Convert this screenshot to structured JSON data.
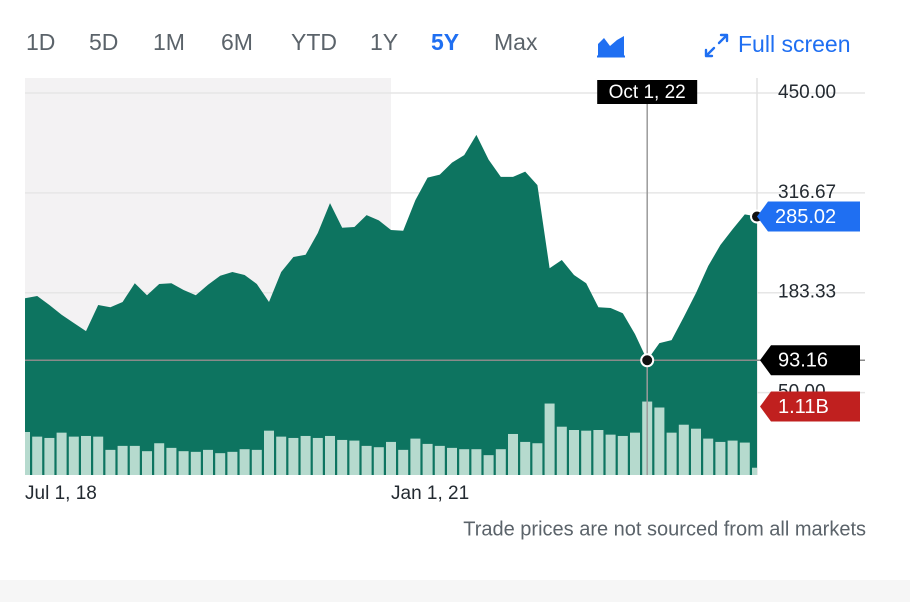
{
  "ui": {
    "ranges": [
      "1D",
      "5D",
      "1M",
      "6M",
      "YTD",
      "1Y",
      "5Y",
      "Max"
    ],
    "active_range": "5Y",
    "fullscreen": "Full screen",
    "note": "Trade prices are not sourced from all markets"
  },
  "chart_data": {
    "type": "area",
    "categories": [
      "Jul 1, 18",
      null,
      null,
      null,
      null,
      null,
      null,
      null,
      null,
      null,
      null,
      null,
      null,
      null,
      null,
      null,
      null,
      null,
      null,
      null,
      null,
      null,
      null,
      null,
      null,
      null,
      null,
      null,
      null,
      null,
      "Jan 1, 21",
      null,
      null,
      null,
      null,
      null,
      null,
      null,
      null,
      null,
      null,
      null,
      null,
      null,
      null,
      null,
      null,
      null,
      null,
      null,
      null,
      "Oct 1, 22",
      null,
      null,
      null,
      null,
      null,
      null,
      null,
      null,
      null
    ],
    "series": [
      {
        "name": "Price",
        "type": "area",
        "color": "#0d7460",
        "values": [
          176,
          179,
          167,
          154,
          143,
          132,
          167,
          164,
          171,
          196,
          180,
          195,
          196,
          187,
          180,
          194,
          206,
          211,
          207,
          195,
          171,
          211,
          231,
          234,
          263,
          303,
          270,
          271,
          287,
          280,
          267,
          266,
          307,
          337,
          341,
          357,
          367,
          394,
          361,
          338,
          338,
          345,
          327,
          216,
          227,
          207,
          196,
          164,
          163,
          156,
          128,
          93.16,
          116,
          120,
          151,
          183,
          219,
          247,
          268,
          288,
          285.02
        ]
      },
      {
        "name": "Volume",
        "type": "bar",
        "axis": "y2",
        "color": "#c4e3d8",
        "values": [
          0.65,
          0.58,
          0.56,
          0.64,
          0.58,
          0.59,
          0.58,
          0.38,
          0.44,
          0.44,
          0.36,
          0.48,
          0.41,
          0.36,
          0.35,
          0.38,
          0.33,
          0.35,
          0.39,
          0.38,
          0.67,
          0.58,
          0.56,
          0.59,
          0.56,
          0.59,
          0.53,
          0.52,
          0.44,
          0.42,
          0.5,
          0.38,
          0.55,
          0.47,
          0.44,
          0.41,
          0.39,
          0.39,
          0.3,
          0.39,
          0.62,
          0.5,
          0.48,
          1.08,
          0.73,
          0.68,
          0.67,
          0.68,
          0.61,
          0.59,
          0.64,
          1.11,
          1.02,
          0.64,
          0.76,
          0.7,
          0.55,
          0.5,
          0.52,
          0.49,
          0.11
        ],
        "value_labels": [
          null,
          null,
          null,
          null,
          null,
          null,
          null,
          null,
          null,
          null,
          null,
          null,
          null,
          null,
          null,
          null,
          null,
          null,
          null,
          null,
          null,
          null,
          null,
          null,
          null,
          null,
          null,
          null,
          null,
          null,
          null,
          null,
          null,
          null,
          null,
          null,
          null,
          null,
          null,
          null,
          null,
          null,
          null,
          null,
          null,
          null,
          null,
          null,
          null,
          null,
          null,
          "1.11B",
          null,
          null,
          null,
          null,
          null,
          null,
          null,
          null,
          null
        ]
      }
    ],
    "ylim": [
      -60,
      470
    ],
    "yticks": [
      {
        "value": 450,
        "label": "450.00"
      },
      {
        "value": 316.67,
        "label": "316.67"
      },
      {
        "value": 183.33,
        "label": "183.33"
      },
      {
        "value": 50,
        "label": "50.00"
      }
    ],
    "y2lim": [
      0,
      6
    ],
    "grid": true,
    "crosshair": 51,
    "last_price_color": "#1f6ff2",
    "crosshair_price_color": "#000000",
    "crosshair_volume_color": "#c0201f"
  }
}
